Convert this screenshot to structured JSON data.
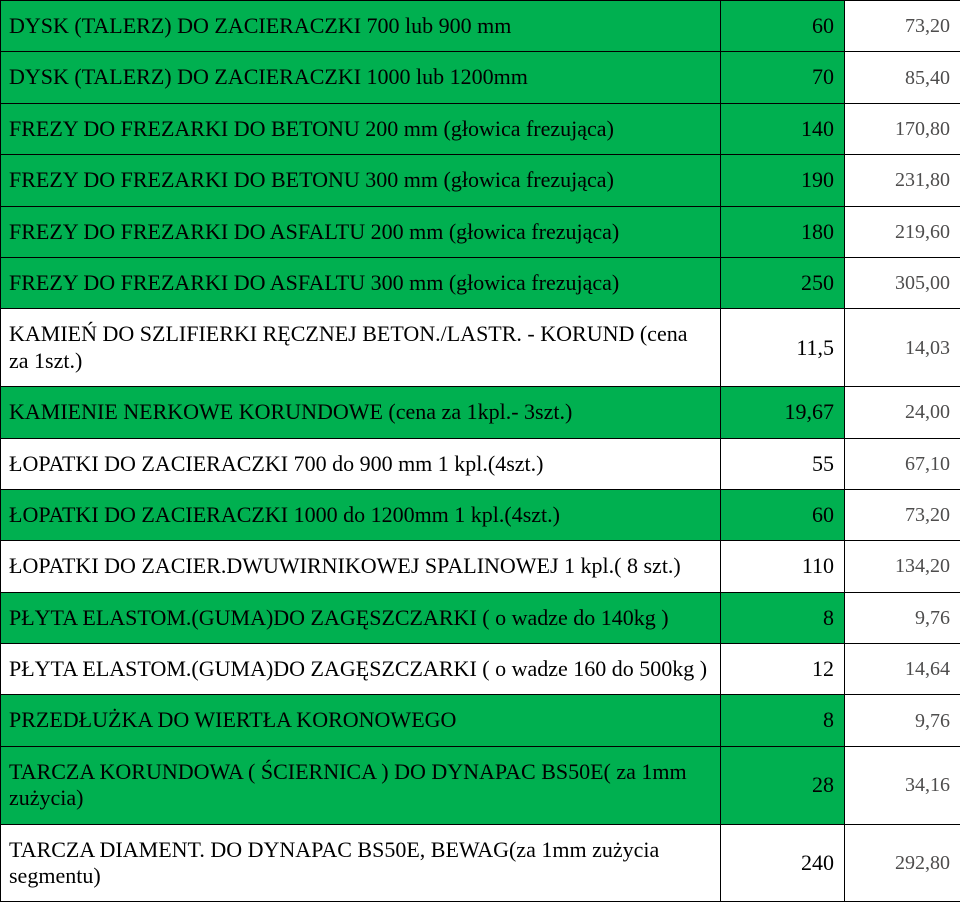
{
  "table": {
    "row_bg_green": "#00b050",
    "rows": [
      {
        "name": "DYSK (TALERZ) DO ZACIERACZKI 700 lub 900 mm",
        "v1": "60",
        "v2": "73,20",
        "green": true
      },
      {
        "name": "DYSK (TALERZ) DO ZACIERACZKI 1000 lub 1200mm",
        "v1": "70",
        "v2": "85,40",
        "green": true
      },
      {
        "name": "FREZY DO FREZARKI DO BETONU 200 mm (głowica frezująca)",
        "v1": "140",
        "v2": "170,80",
        "green": true
      },
      {
        "name": "FREZY DO FREZARKI DO BETONU 300 mm (głowica frezująca)",
        "v1": "190",
        "v2": "231,80",
        "green": true
      },
      {
        "name": "FREZY DO FREZARKI DO ASFALTU 200 mm (głowica frezująca)",
        "v1": "180",
        "v2": "219,60",
        "green": true
      },
      {
        "name": "FREZY DO FREZARKI DO ASFALTU 300 mm (głowica frezująca)",
        "v1": "250",
        "v2": "305,00",
        "green": true
      },
      {
        "name": "KAMIEŃ DO SZLIFIERKI RĘCZNEJ BETON./LASTR. - KORUND (cena za 1szt.)",
        "v1": "11,5",
        "v2": "14,03",
        "green": false
      },
      {
        "name": "KAMIENIE NERKOWE KORUNDOWE (cena za 1kpl.- 3szt.)",
        "v1": "19,67",
        "v2": "24,00",
        "green": true
      },
      {
        "name": "ŁOPATKI DO ZACIERACZKI 700 do 900 mm 1 kpl.(4szt.)",
        "v1": "55",
        "v2": "67,10",
        "green": false
      },
      {
        "name": "ŁOPATKI DO ZACIERACZKI 1000 do 1200mm 1 kpl.(4szt.)",
        "v1": "60",
        "v2": "73,20",
        "green": true
      },
      {
        "name": "ŁOPATKI DO ZACIER.DWUWIRNIKOWEJ SPALINOWEJ 1 kpl.( 8 szt.)",
        "v1": "110",
        "v2": "134,20",
        "green": false
      },
      {
        "name": "PŁYTA ELASTOM.(GUMA)DO ZAGĘSZCZARKI ( o wadze do 140kg )",
        "v1": "8",
        "v2": "9,76",
        "green": true
      },
      {
        "name": "PŁYTA ELASTOM.(GUMA)DO ZAGĘSZCZARKI ( o wadze 160 do 500kg )",
        "v1": "12",
        "v2": "14,64",
        "green": false
      },
      {
        "name": "PRZEDŁUŻKA DO WIERTŁA KORONOWEGO",
        "v1": "8",
        "v2": "9,76",
        "green": true
      },
      {
        "name": "TARCZA KORUNDOWA ( ŚCIERNICA ) DO DYNAPAC BS50E( za 1mm zużycia)",
        "v1": "28",
        "v2": "34,16",
        "green": true
      },
      {
        "name": "TARCZA DIAMENT. DO DYNAPAC BS50E, BEWAG(za 1mm zużycia segmentu)",
        "v1": "240",
        "v2": "292,80",
        "green": false
      }
    ]
  }
}
